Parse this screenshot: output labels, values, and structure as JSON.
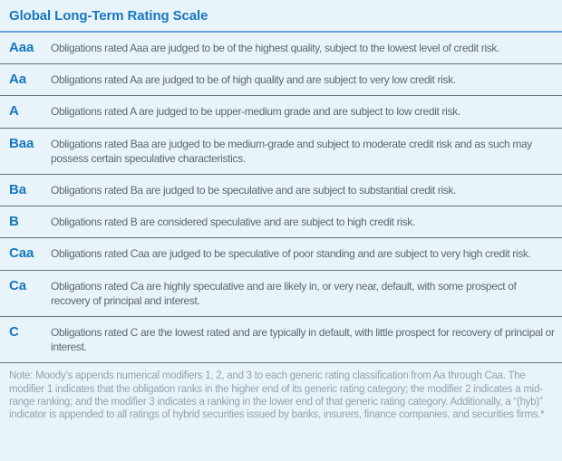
{
  "title": "Global Long-Term Rating Scale",
  "table": {
    "rows": [
      {
        "rating": "Aaa",
        "description": "Obligations rated Aaa are judged to be of the highest quality, subject to the lowest level of credit risk."
      },
      {
        "rating": "Aa",
        "description": "Obligations rated Aa are judged to be of high quality and are subject to very low credit risk."
      },
      {
        "rating": "A",
        "description": "Obligations rated A are judged to be upper-medium grade and are subject to low credit risk."
      },
      {
        "rating": "Baa",
        "description": "Obligations rated Baa are judged to be medium-grade and subject to moderate credit risk and as such may possess certain speculative characteristics."
      },
      {
        "rating": "Ba",
        "description": "Obligations rated Ba are judged to be speculative and are subject to substantial credit risk."
      },
      {
        "rating": "B",
        "description": "Obligations rated B are considered speculative and are subject to high credit risk."
      },
      {
        "rating": "Caa",
        "description": "Obligations rated Caa are judged to be speculative of poor standing and are subject to very high credit risk."
      },
      {
        "rating": "Ca",
        "description": "Obligations rated Ca are highly speculative and are likely in, or very near, default, with some prospect of recovery of principal and interest."
      },
      {
        "rating": "C",
        "description": "Obligations rated C are the lowest rated and are typically in default, with little prospect for recovery of principal or interest."
      }
    ]
  },
  "note": "Note: Moody’s appends numerical modifiers 1, 2, and 3 to each generic rating classification from Aa through Caa. The modifier 1 indicates that the obligation ranks in the higher end of its generic rating category; the modifier 2 indicates a mid-range ranking; and the modifier 3 indicates a ranking in the lower end of that generic rating category. Additionally, a “(hyb)” indicator is appended to all ratings of hybrid securities issued by banks, insurers, finance companies, and securities firms.*",
  "colors": {
    "background": "#e9f3fa",
    "title_blue": "#1678bf",
    "rating_blue": "#1678bf",
    "body_text": "#5c6872",
    "note_text": "#93a3ae",
    "title_rule": "#68a5d6",
    "row_rule": "#5f7180"
  }
}
